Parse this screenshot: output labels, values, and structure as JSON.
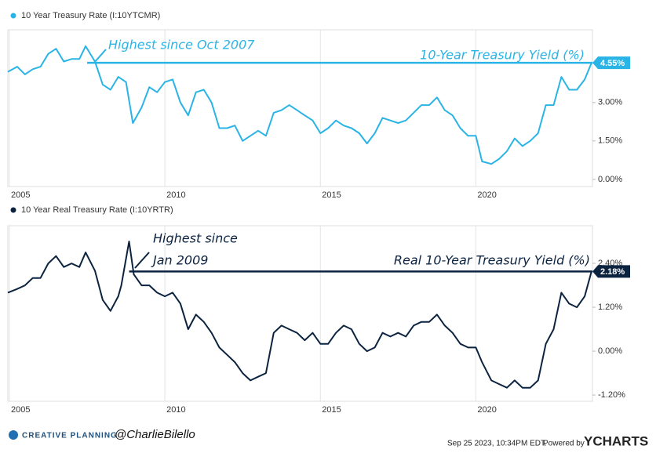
{
  "chart_data": [
    {
      "type": "line",
      "legend": "10 Year Treasury Rate (I:10YTCMR)",
      "color": "#2ab4e6",
      "annotations": [
        "Highest since Oct 2007",
        "10-Year Treasury Yield (%)"
      ],
      "last_value": {
        "value": 4.55,
        "label": "4.55%"
      },
      "xlim": [
        2004.95,
        2023.75
      ],
      "xticks": [
        2005,
        2010,
        2015,
        2020
      ],
      "ylim": [
        -0.28,
        5.84
      ],
      "yticks": [
        {
          "value": 0,
          "label": "0.00%"
        },
        {
          "value": 1.5,
          "label": "1.50%"
        },
        {
          "value": 3,
          "label": "3.00%"
        }
      ],
      "x": [
        2004.95,
        2005.25,
        2005.5,
        2005.75,
        2006.0,
        2006.25,
        2006.5,
        2006.75,
        2007.0,
        2007.25,
        2007.45,
        2007.75,
        2008.0,
        2008.25,
        2008.5,
        2008.75,
        2008.97,
        2009.25,
        2009.5,
        2009.75,
        2010.0,
        2010.25,
        2010.5,
        2010.75,
        2011.0,
        2011.25,
        2011.5,
        2011.75,
        2012.0,
        2012.25,
        2012.5,
        2012.75,
        2013.0,
        2013.25,
        2013.5,
        2013.75,
        2014.0,
        2014.25,
        2014.5,
        2014.75,
        2015.0,
        2015.25,
        2015.5,
        2015.75,
        2016.0,
        2016.25,
        2016.5,
        2016.75,
        2017.0,
        2017.25,
        2017.5,
        2017.75,
        2018.0,
        2018.25,
        2018.5,
        2018.75,
        2019.0,
        2019.25,
        2019.5,
        2019.75,
        2020.0,
        2020.2,
        2020.5,
        2020.75,
        2021.0,
        2021.25,
        2021.5,
        2021.75,
        2022.0,
        2022.25,
        2022.5,
        2022.75,
        2023.0,
        2023.25,
        2023.5,
        2023.72
      ],
      "values": [
        4.2,
        4.4,
        4.1,
        4.3,
        4.4,
        4.9,
        5.1,
        4.6,
        4.7,
        4.7,
        5.2,
        4.6,
        3.7,
        3.5,
        4.0,
        3.8,
        2.2,
        2.8,
        3.6,
        3.4,
        3.8,
        3.9,
        3.0,
        2.5,
        3.4,
        3.5,
        3.0,
        2.0,
        2.0,
        2.1,
        1.5,
        1.7,
        1.9,
        1.7,
        2.6,
        2.7,
        2.9,
        2.7,
        2.5,
        2.3,
        1.8,
        2.0,
        2.3,
        2.1,
        2.0,
        1.8,
        1.4,
        1.8,
        2.4,
        2.3,
        2.2,
        2.3,
        2.6,
        2.9,
        2.9,
        3.2,
        2.7,
        2.5,
        2.0,
        1.7,
        1.7,
        0.7,
        0.6,
        0.8,
        1.1,
        1.6,
        1.3,
        1.5,
        1.8,
        2.9,
        2.9,
        4.0,
        3.5,
        3.5,
        3.9,
        4.55
      ]
    },
    {
      "type": "line",
      "legend": "10 Year Real Treasury Rate (I:10YRTR)",
      "color": "#0c2340",
      "annotations": [
        "Highest since",
        "Jan 2009",
        "Real 10-Year Treasury Yield (%)"
      ],
      "last_value": {
        "value": 2.18,
        "label": "2.18%"
      },
      "xlim": [
        2004.95,
        2023.75
      ],
      "xticks": [
        2005,
        2010,
        2015,
        2020
      ],
      "ylim": [
        -1.37,
        3.43
      ],
      "yticks": [
        {
          "value": -1.2,
          "label": "-1.20%"
        },
        {
          "value": 0,
          "label": "0.00%"
        },
        {
          "value": 1.2,
          "label": "1.20%"
        },
        {
          "value": 2.4,
          "label": "2.40%"
        }
      ],
      "x": [
        2004.95,
        2005.25,
        2005.5,
        2005.75,
        2006.0,
        2006.25,
        2006.5,
        2006.75,
        2007.0,
        2007.25,
        2007.45,
        2007.75,
        2008.0,
        2008.25,
        2008.5,
        2008.6,
        2008.85,
        2009.0,
        2009.25,
        2009.5,
        2009.75,
        2010.0,
        2010.25,
        2010.5,
        2010.75,
        2011.0,
        2011.25,
        2011.5,
        2011.75,
        2012.0,
        2012.25,
        2012.5,
        2012.75,
        2013.0,
        2013.25,
        2013.5,
        2013.75,
        2014.0,
        2014.25,
        2014.5,
        2014.75,
        2015.0,
        2015.25,
        2015.5,
        2015.75,
        2016.0,
        2016.25,
        2016.5,
        2016.75,
        2017.0,
        2017.25,
        2017.5,
        2017.75,
        2018.0,
        2018.25,
        2018.5,
        2018.75,
        2019.0,
        2019.25,
        2019.5,
        2019.75,
        2020.0,
        2020.2,
        2020.5,
        2020.75,
        2021.0,
        2021.25,
        2021.5,
        2021.75,
        2022.0,
        2022.25,
        2022.5,
        2022.75,
        2023.0,
        2023.25,
        2023.5,
        2023.72
      ],
      "values": [
        1.6,
        1.7,
        1.8,
        2.0,
        2.0,
        2.4,
        2.6,
        2.3,
        2.4,
        2.3,
        2.7,
        2.2,
        1.4,
        1.1,
        1.5,
        1.8,
        3.0,
        2.1,
        1.8,
        1.8,
        1.6,
        1.5,
        1.6,
        1.3,
        0.6,
        1.0,
        0.8,
        0.5,
        0.1,
        -0.1,
        -0.3,
        -0.6,
        -0.8,
        -0.7,
        -0.6,
        0.5,
        0.7,
        0.6,
        0.5,
        0.3,
        0.5,
        0.2,
        0.2,
        0.5,
        0.7,
        0.6,
        0.2,
        0.0,
        0.1,
        0.5,
        0.4,
        0.5,
        0.4,
        0.7,
        0.8,
        0.8,
        1.0,
        0.7,
        0.5,
        0.2,
        0.1,
        0.1,
        -0.3,
        -0.8,
        -0.9,
        -1.0,
        -0.8,
        -1.0,
        -1.0,
        -0.8,
        0.2,
        0.6,
        1.6,
        1.3,
        1.2,
        1.5,
        2.18
      ]
    }
  ],
  "footer": {
    "brand": "CREATIVE PLANNING",
    "handle": "@CharlieBilello",
    "timestamp": "Sep 25 2023, 10:34PM EDT.",
    "powered": "Powered by",
    "vendor": "YCHARTS"
  }
}
